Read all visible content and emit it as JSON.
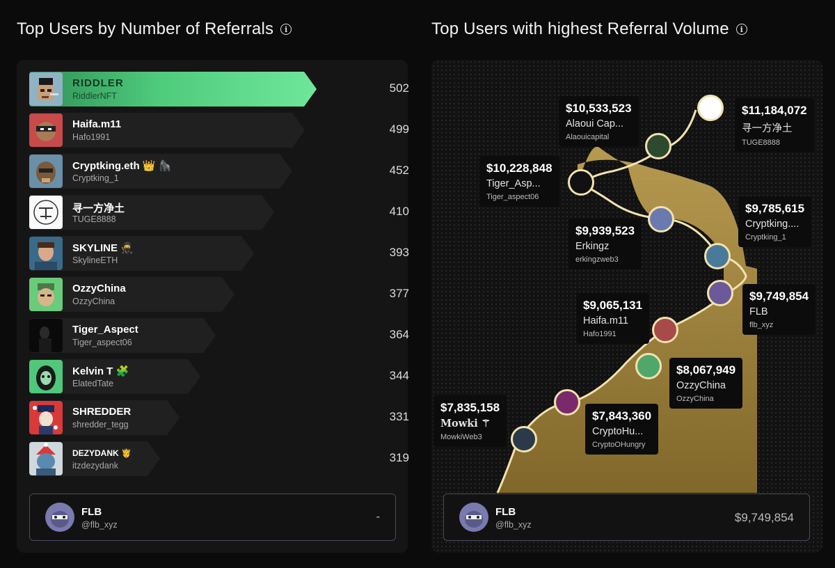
{
  "left": {
    "title": "Top Users by Number of Referrals",
    "rows": [
      {
        "name": "RIDDLER",
        "handle": "RiddlerNFT",
        "count": "502"
      },
      {
        "name": "Haifa.m11",
        "handle": "Hafo1991",
        "count": "499"
      },
      {
        "name": "Cryptking.eth 👑 🦍",
        "handle": "Cryptking_1",
        "count": "452"
      },
      {
        "name": "寻一方净土",
        "handle": "TUGE8888",
        "count": "410"
      },
      {
        "name": "SKYLINE 🥷",
        "handle": "SkylineETH",
        "count": "393"
      },
      {
        "name": "OzzyChina",
        "handle": "OzzyChina",
        "count": "377"
      },
      {
        "name": "Tiger_Aspect",
        "handle": "Tiger_aspect06",
        "count": "364"
      },
      {
        "name": "Kelvin T 🧩",
        "handle": "ElatedTate",
        "count": "344"
      },
      {
        "name": "SHREDDER",
        "handle": "shredder_tegg",
        "count": "331"
      },
      {
        "name": "DEZYDANK 🤴",
        "handle": "itzdezydank",
        "count": "319"
      }
    ],
    "you": {
      "name": "FLB",
      "handle": "@flb_xyz",
      "value": "-"
    }
  },
  "right": {
    "title": "Top Users with highest Referral Volume",
    "labels": [
      {
        "value": "$11,184,072",
        "name": "寻一方净土",
        "handle": "TUGE8888"
      },
      {
        "value": "$10,533,523",
        "name": "Alaoui Cap...",
        "handle": "Alaouicapital"
      },
      {
        "value": "$10,228,848",
        "name": "Tiger_Asp...",
        "handle": "Tiger_aspect06"
      },
      {
        "value": "$9,939,523",
        "name": "Erkingz",
        "handle": "erkingzweb3"
      },
      {
        "value": "$9,785,615",
        "name": "Cryptking....",
        "handle": "Cryptking_1"
      },
      {
        "value": "$9,749,854",
        "name": "FLB",
        "handle": "flb_xyz"
      },
      {
        "value": "$9,065,131",
        "name": "Haifa.m11",
        "handle": "Hafo1991"
      },
      {
        "value": "$8,067,949",
        "name": "OzzyChina",
        "handle": "OzzyChina"
      },
      {
        "value": "$7,843,360",
        "name": "CryptoHu...",
        "handle": "CryptoOHungry"
      },
      {
        "value": "$7,835,158",
        "name": "Mowki ⚚",
        "handle": "MowkiWeb3"
      }
    ],
    "you": {
      "name": "FLB",
      "handle": "@flb_xyz",
      "value": "$9,749,854"
    }
  },
  "colors": {
    "green": "#5ed98a",
    "gold": "#c9a84c",
    "line": "#f2e2ae"
  }
}
